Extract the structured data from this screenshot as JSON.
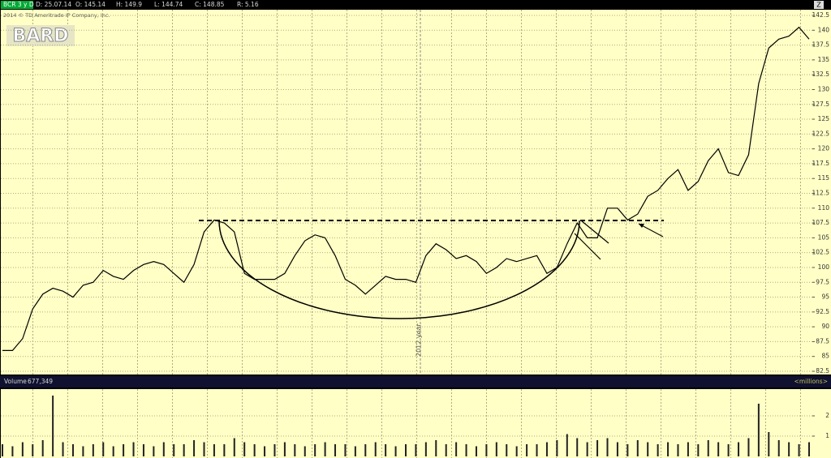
{
  "chart_data": [
    {
      "type": "line",
      "title": "BCR 3 y D",
      "info": [
        "D: 25.07.14",
        "O: 145.14",
        "H: 149.9",
        "L: 144.74",
        "C: 148.85",
        "R: 5.16"
      ],
      "copyright": "2014 © TD Ameritrade IP Company, Inc.",
      "watermark": "BARD",
      "annotation": "2012 year",
      "categories": [
        null,
        null,
        null,
        null,
        null,
        null,
        null,
        null,
        null,
        null,
        null,
        null,
        null,
        null,
        null,
        null,
        null,
        null,
        null,
        null,
        null,
        null,
        null,
        null,
        null,
        null,
        null,
        null,
        null,
        null,
        null,
        null,
        null,
        null,
        null,
        null,
        null,
        null,
        null,
        null,
        null,
        null,
        null,
        null,
        null,
        null,
        null,
        null,
        null,
        null,
        null,
        null,
        null,
        null,
        null,
        null,
        null,
        null,
        null,
        null,
        null,
        null,
        null,
        null,
        null,
        null,
        null,
        null,
        null,
        null,
        null,
        null,
        null,
        null,
        null,
        null,
        null,
        null,
        null,
        null,
        null
      ],
      "values": [
        86,
        86,
        88,
        93,
        95.5,
        96.5,
        96,
        95,
        97,
        97.5,
        99.5,
        98.5,
        98,
        99.5,
        100.5,
        101,
        100.5,
        99,
        97.5,
        100.5,
        106,
        108,
        107.5,
        106,
        99,
        98,
        98,
        98,
        99,
        102,
        104.5,
        105.5,
        105,
        102,
        98,
        97,
        95.5,
        97,
        98.5,
        98,
        98,
        97.5,
        102,
        104,
        103,
        101.5,
        102,
        101,
        99,
        100,
        101.5,
        101,
        101.5,
        102,
        99,
        100,
        104,
        107.5,
        105,
        105,
        110,
        110,
        108,
        109,
        112,
        113,
        115,
        116.5,
        113,
        114.5,
        118,
        120,
        116,
        115.5,
        119,
        131,
        137,
        138.5,
        139,
        140.5,
        138.5
      ],
      "color": "#000000",
      "ylim": [
        82.5,
        142.5
      ],
      "yticks": [
        82.5,
        85,
        87.5,
        90,
        92.5,
        95,
        97.5,
        100,
        102.5,
        105,
        107.5,
        110,
        112.5,
        115,
        117.5,
        120,
        122.5,
        125,
        127.5,
        130,
        132.5,
        135,
        137.5,
        140,
        142.5
      ],
      "grid": true
    },
    {
      "type": "bar",
      "title": "Volume",
      "info": [
        "677,349"
      ],
      "unit_label": "<millions>",
      "categories": [
        null,
        null,
        null,
        null,
        null,
        null,
        null,
        null,
        null,
        null,
        null,
        null,
        null,
        null,
        null,
        null,
        null,
        null,
        null,
        null,
        null,
        null,
        null,
        null,
        null,
        null,
        null,
        null,
        null,
        null,
        null,
        null,
        null,
        null,
        null,
        null,
        null,
        null,
        null,
        null,
        null,
        null,
        null,
        null,
        null,
        null,
        null,
        null,
        null,
        null,
        null,
        null,
        null,
        null,
        null,
        null,
        null,
        null,
        null,
        null,
        null,
        null,
        null,
        null,
        null,
        null,
        null,
        null,
        null,
        null,
        null,
        null,
        null,
        null,
        null,
        null,
        null,
        null,
        null,
        null,
        null
      ],
      "values": [
        0.6,
        0.5,
        0.7,
        0.6,
        0.8,
        3.0,
        0.7,
        0.6,
        0.5,
        0.6,
        0.7,
        0.5,
        0.6,
        0.7,
        0.6,
        0.5,
        0.7,
        0.6,
        0.6,
        0.8,
        0.7,
        0.6,
        0.6,
        0.9,
        0.7,
        0.6,
        0.5,
        0.6,
        0.7,
        0.6,
        0.5,
        0.6,
        0.7,
        0.6,
        0.6,
        0.5,
        0.6,
        0.7,
        0.6,
        0.5,
        0.6,
        0.6,
        0.7,
        0.8,
        0.6,
        0.7,
        0.6,
        0.5,
        0.6,
        0.7,
        0.6,
        0.5,
        0.6,
        0.6,
        0.7,
        0.8,
        1.1,
        0.9,
        0.7,
        0.8,
        0.9,
        0.7,
        0.6,
        0.8,
        0.7,
        0.6,
        0.7,
        0.6,
        0.7,
        0.6,
        0.8,
        0.7,
        0.6,
        0.7,
        0.9,
        2.6,
        1.2,
        0.8,
        0.7,
        0.6,
        0.7
      ],
      "color": "#222222",
      "ylim": [
        0,
        3.2
      ],
      "yticks": [
        1,
        2
      ],
      "grid": true
    }
  ]
}
